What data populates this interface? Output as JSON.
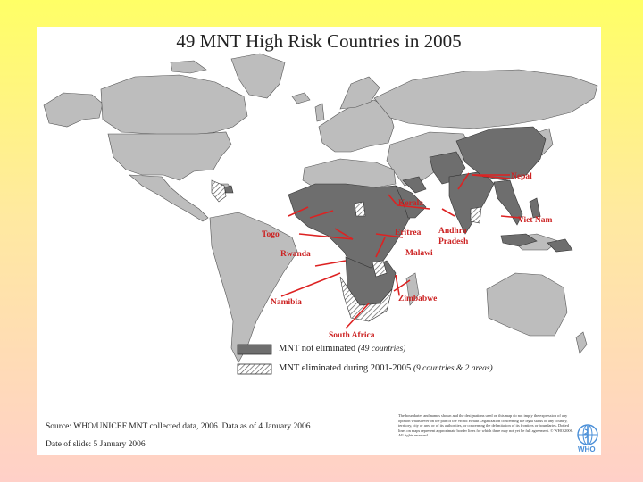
{
  "title": "49 MNT High Risk Countries in 2005",
  "labels": {
    "nepal": "Nepal",
    "kerala": "Kerala",
    "eritrea": "Eritrea",
    "andhra": "Andhra",
    "pradesh": "Pradesh",
    "viet_nam": "Viet Nam",
    "togo": "Togo",
    "rwanda": "Rwanda",
    "malawi": "Malawi",
    "namibia": "Namibia",
    "zimbabwe": "Zimbabwe",
    "south_africa": "South Africa"
  },
  "legend": {
    "not_eliminated": "MNT not eliminated",
    "not_eliminated_note": "(49 countries)",
    "eliminated": "MNT eliminated during 2001-2005",
    "eliminated_note": "(9 countries & 2 areas)"
  },
  "source": "Source: WHO/UNICEF MNT collected data, 2006. Data as of 4 January 2006",
  "date": "Date of slide: 5 January 2006",
  "disclaimer": "The boundaries and names shown and the designations used on this map do not imply the expression of any opinion whatsoever on the part of the World Health Organization concerning the legal status of any country, territory, city or area or of its authorities, or concerning the delimitation of its frontiers or boundaries. Dotted lines on maps represent approximate border lines for which there may not yet be full agreement. © WHO 2006. All rights reserved",
  "logo_text": "WHO",
  "colors": {
    "high_risk": "#6e6e6e",
    "other_land": "#bdbdbd",
    "eliminated_hatch": "#555555",
    "pointer": "#dd2222",
    "label": "#cc2222"
  }
}
